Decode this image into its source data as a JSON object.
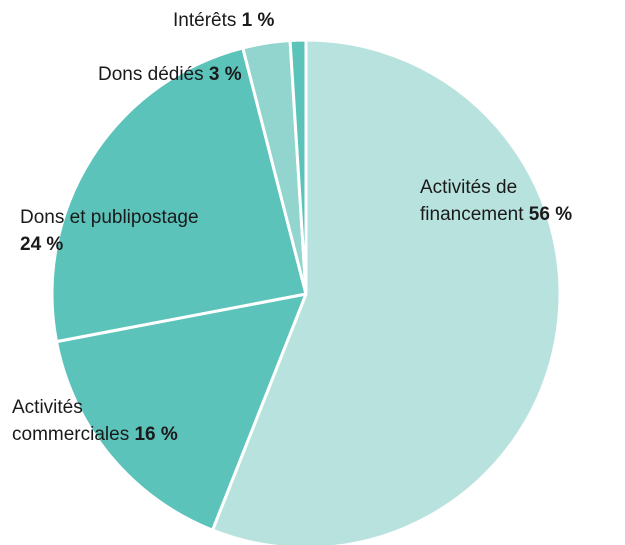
{
  "chart_data": {
    "type": "pie",
    "categories": [
      "Activités de financement",
      "Activités commerciales",
      "Dons et publipostage",
      "Dons dédiés",
      "Intérêts"
    ],
    "values": [
      56,
      16,
      24,
      3,
      1
    ],
    "value_labels": [
      "56 %",
      "16 %",
      "24 %",
      "3 %",
      "1 %"
    ],
    "colors": [
      "#b8e2de",
      "#5cc3bb",
      "#5cc3bb",
      "#92d4ce",
      "#5cc3bb"
    ]
  }
}
